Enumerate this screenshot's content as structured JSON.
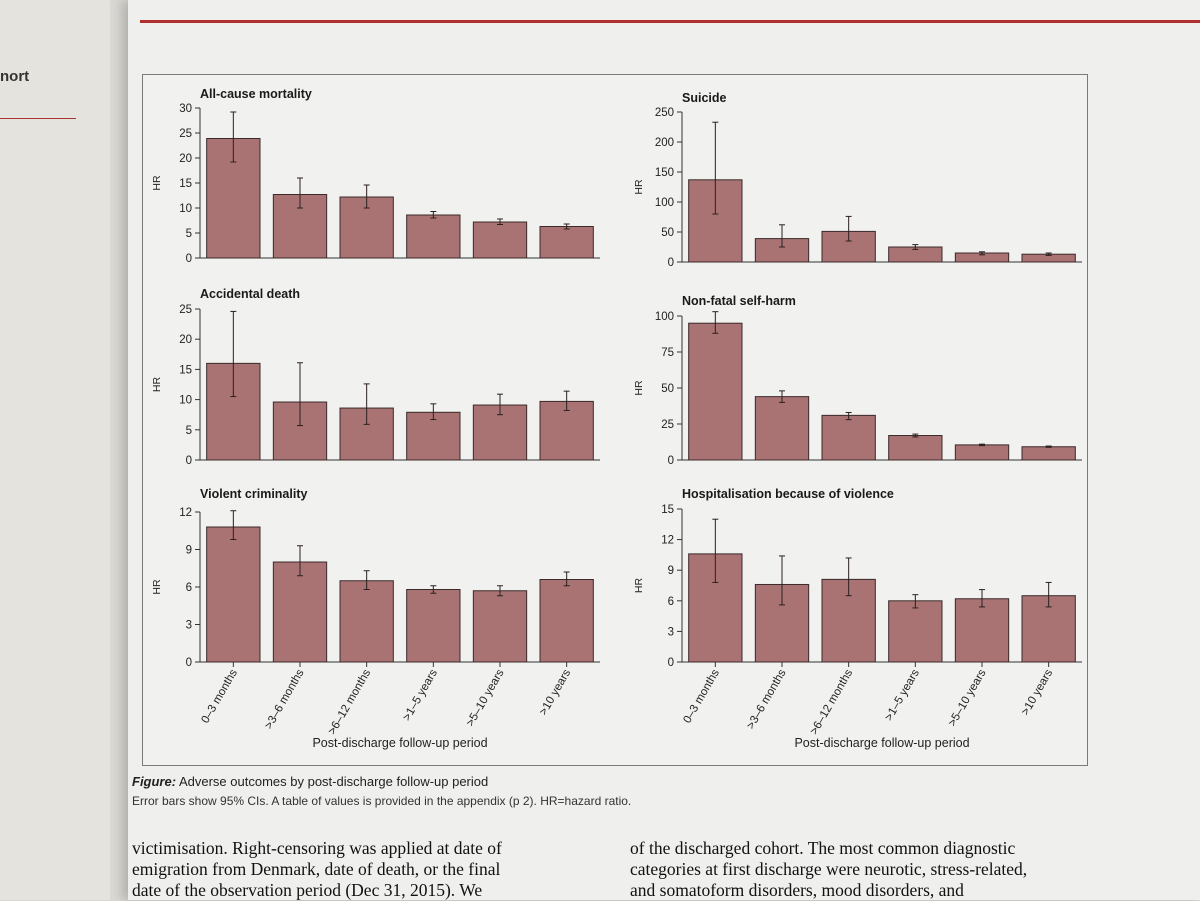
{
  "left_page": {
    "fragment": "nort"
  },
  "figure": {
    "caption_label": "Figure:",
    "caption_title": "Adverse outcomes by post-discharge follow-up period",
    "caption_note": "Error bars show 95% CIs. A table of values is provided in the appendix (p 2). HR=hazard ratio."
  },
  "chart_data": [
    {
      "type": "bar",
      "title": "All-cause mortality",
      "ylabel": "HR",
      "ylim": [
        0,
        30
      ],
      "yticks": [
        0,
        5,
        10,
        15,
        20,
        25,
        30
      ],
      "categories": [
        "0–3 months",
        ">3–6 months",
        ">6–12 months",
        ">1–5 years",
        ">5–10 years",
        ">10 years"
      ],
      "values": [
        23.9,
        12.7,
        12.2,
        8.6,
        7.2,
        6.3
      ],
      "ci_low": [
        19.2,
        10.0,
        10.0,
        8.0,
        6.7,
        5.8
      ],
      "ci_high": [
        29.2,
        16.0,
        14.6,
        9.3,
        7.8,
        6.8
      ],
      "color": "#a97373"
    },
    {
      "type": "bar",
      "title": "Suicide",
      "ylabel": "HR",
      "ylim": [
        0,
        250
      ],
      "yticks": [
        0,
        50,
        100,
        150,
        200,
        250
      ],
      "categories": [
        "0–3 months",
        ">3–6 months",
        ">6–12 months",
        ">1–5 years",
        ">5–10 years",
        ">10 years"
      ],
      "values": [
        137,
        39,
        51,
        25,
        15,
        13
      ],
      "ci_low": [
        80,
        25,
        35,
        21,
        12,
        11
      ],
      "ci_high": [
        233,
        62,
        76,
        29,
        17,
        15
      ],
      "color": "#a97373"
    },
    {
      "type": "bar",
      "title": "Accidental death",
      "ylabel": "HR",
      "ylim": [
        0,
        25
      ],
      "yticks": [
        0,
        5,
        10,
        15,
        20,
        25
      ],
      "categories": [
        "0–3 months",
        ">3–6 months",
        ">6–12 months",
        ">1–5 years",
        ">5–10 years",
        ">10 years"
      ],
      "values": [
        16.0,
        9.6,
        8.6,
        7.9,
        9.1,
        9.7
      ],
      "ci_low": [
        10.5,
        5.7,
        5.9,
        6.7,
        7.5,
        8.2
      ],
      "ci_high": [
        24.6,
        16.1,
        12.6,
        9.3,
        10.9,
        11.4
      ],
      "color": "#a97373"
    },
    {
      "type": "bar",
      "title": "Non-fatal self-harm",
      "ylabel": "HR",
      "ylim": [
        0,
        100
      ],
      "yticks": [
        0,
        25,
        50,
        75,
        100
      ],
      "categories": [
        "0–3 months",
        ">3–6 months",
        ">6–12 months",
        ">1–5 years",
        ">5–10 years",
        ">10 years"
      ],
      "values": [
        95,
        44,
        31,
        17,
        10.5,
        9.2
      ],
      "ci_low": [
        88,
        40,
        28,
        16,
        10,
        8.8
      ],
      "ci_high": [
        103,
        48,
        33,
        18,
        11,
        9.7
      ],
      "color": "#a97373"
    },
    {
      "type": "bar",
      "title": "Violent criminality",
      "ylabel": "HR",
      "ylim": [
        0,
        12
      ],
      "yticks": [
        0,
        3,
        6,
        9,
        12
      ],
      "categories": [
        "0–3 months",
        ">3–6 months",
        ">6–12 months",
        ">1–5 years",
        ">5–10 years",
        ">10 years"
      ],
      "values": [
        10.8,
        8.0,
        6.5,
        5.8,
        5.7,
        6.6
      ],
      "ci_low": [
        9.8,
        6.9,
        5.8,
        5.5,
        5.3,
        6.1
      ],
      "ci_high": [
        12.1,
        9.3,
        7.3,
        6.1,
        6.1,
        7.2
      ],
      "color": "#a97373",
      "xlabel": "Post-discharge follow-up period"
    },
    {
      "type": "bar",
      "title": "Hospitalisation because of violence",
      "ylabel": "HR",
      "ylim": [
        0,
        15
      ],
      "yticks": [
        0,
        3,
        6,
        9,
        12,
        15
      ],
      "categories": [
        "0–3 months",
        ">3–6 months",
        ">6–12 months",
        ">1–5 years",
        ">5–10 years",
        ">10 years"
      ],
      "values": [
        10.6,
        7.6,
        8.1,
        6.0,
        6.2,
        6.5
      ],
      "ci_low": [
        7.8,
        5.6,
        6.5,
        5.3,
        5.4,
        5.4
      ],
      "ci_high": [
        14.0,
        10.4,
        10.2,
        6.6,
        7.1,
        7.8
      ],
      "color": "#a97373",
      "xlabel": "Post-discharge follow-up period"
    }
  ],
  "body_text": {
    "left": [
      "victimisation. Right-censoring was applied at date of",
      "emigration from Denmark, date of death, or the final",
      "date of the observation period (Dec 31, 2015). We"
    ],
    "right": [
      "of the discharged cohort. The most common diagnostic",
      "categories at first discharge were neurotic, stress-related,",
      "and somatoform disorders, mood disorders, and"
    ]
  }
}
